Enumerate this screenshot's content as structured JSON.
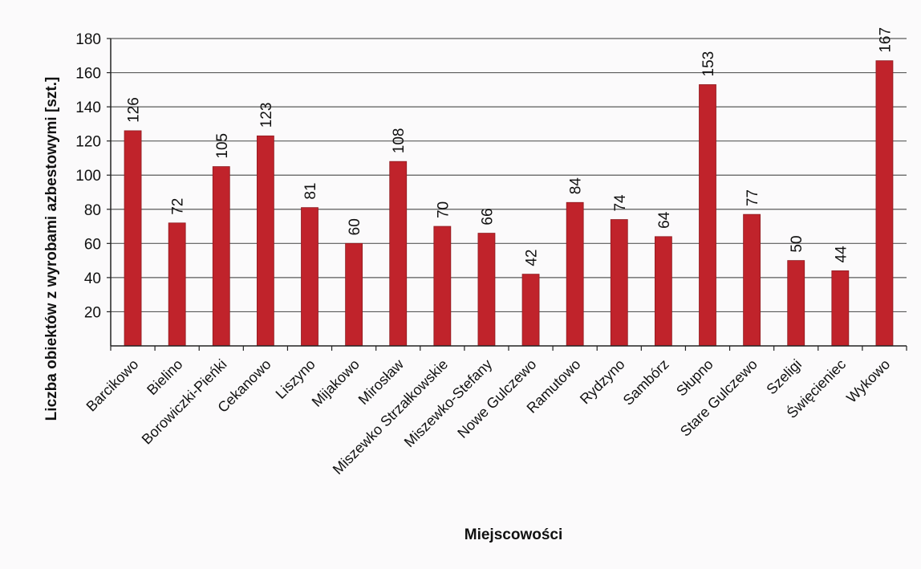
{
  "chart_data": {
    "type": "bar",
    "xlabel": "Miejscowości",
    "ylabel": "Liczba obiektów z wyrobami azbestowymi [szt.]",
    "ylim": [
      0,
      180
    ],
    "yticks": [
      20,
      40,
      60,
      80,
      100,
      120,
      140,
      160,
      180
    ],
    "grid": true,
    "legend": "none",
    "bar_color": "#c0232b",
    "categories": [
      "Barcikowo",
      "Bielino",
      "Borowiczki-Pieńki",
      "Cekanowo",
      "Liszyno",
      "Mijakowo",
      "Mirosław",
      "Miszewko Strzałkowskie",
      "Miszewko-Stefany",
      "Nowe Gulczewo",
      "Ramutowo",
      "Rydzyno",
      "Sambórz",
      "Słupno",
      "Stare Gulczewo",
      "Szeligi",
      "Święcieniec",
      "Wykowo"
    ],
    "series": [
      {
        "values": [
          126,
          72,
          105,
          123,
          81,
          60,
          108,
          70,
          66,
          42,
          84,
          74,
          64,
          153,
          77,
          50,
          44,
          167
        ]
      }
    ]
  }
}
